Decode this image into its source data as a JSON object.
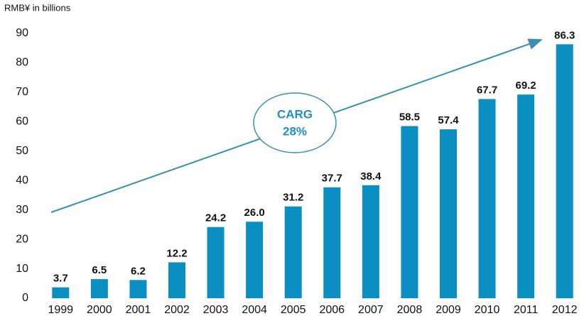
{
  "chart_data": {
    "type": "bar",
    "y_axis_label": "RMB¥ in billions",
    "categories": [
      "1999",
      "2000",
      "2001",
      "2002",
      "2003",
      "2004",
      "2005",
      "2006",
      "2007",
      "2008",
      "2009",
      "2010",
      "2011",
      "2012"
    ],
    "values": [
      3.7,
      6.5,
      6.2,
      12.2,
      24.2,
      26.0,
      31.2,
      37.7,
      38.4,
      58.5,
      57.4,
      67.7,
      69.2,
      86.3
    ],
    "value_labels": [
      "3.7",
      "6.5",
      "6.2",
      "12.2",
      "24.2",
      "26.0",
      "31.2",
      "37.7",
      "38.4",
      "58.5",
      "57.4",
      "67.7",
      "69.2",
      "86.3"
    ],
    "color": "#0b8fc2",
    "ylim": [
      0,
      90
    ],
    "yticks": [
      0,
      10,
      20,
      30,
      40,
      50,
      60,
      70,
      80,
      90
    ],
    "grid": false,
    "annotations": [
      "CARG",
      "28%"
    ]
  }
}
